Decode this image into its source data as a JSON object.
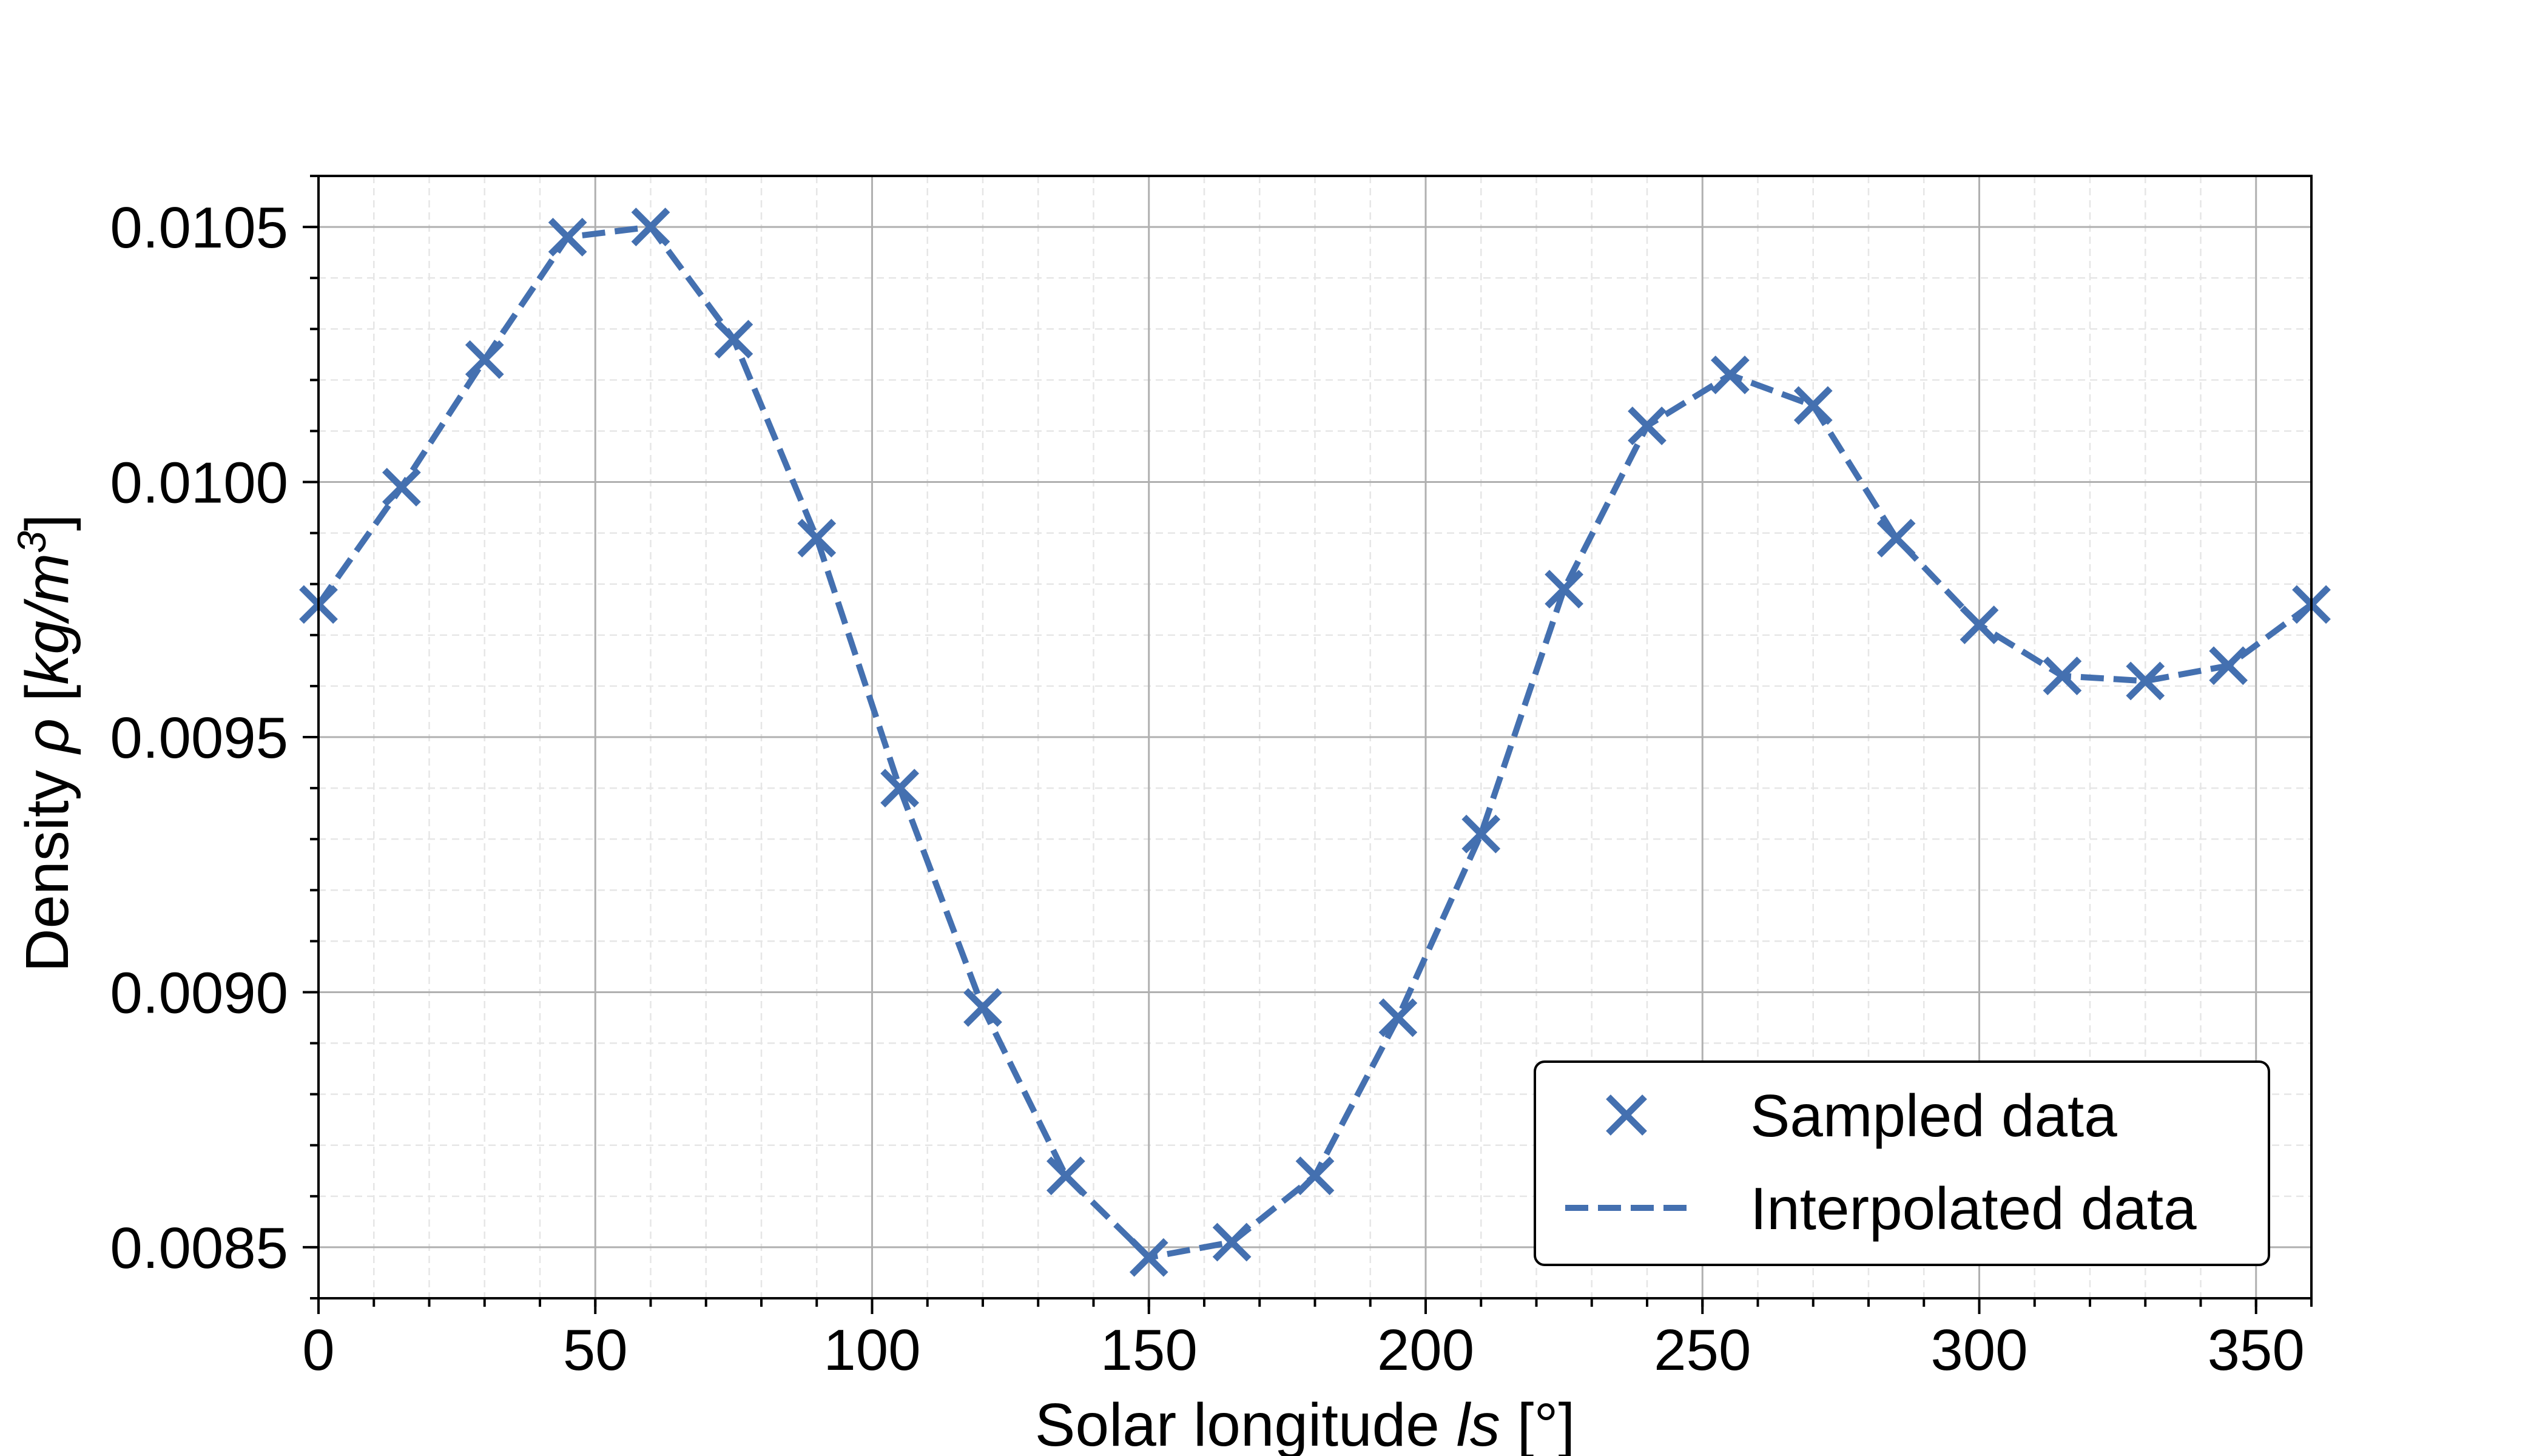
{
  "chart_data": {
    "type": "line",
    "title": "",
    "xlabel": "Solar longitude ls [°]",
    "xlabel_parts": {
      "before": "Solar longitude ",
      "italic": "ls",
      "after": " [°]"
    },
    "ylabel": "Density ρ [kg/m³]",
    "ylabel_parts": {
      "before": "Density ",
      "italic": "ρ",
      "bracket_open": " [",
      "unit_italic": "kg/m",
      "unit_sup": "3",
      "bracket_close": "]"
    },
    "xlim": [
      0,
      360
    ],
    "ylim": [
      0.0084,
      0.0106
    ],
    "x_ticks": [
      0,
      50,
      100,
      150,
      200,
      250,
      300,
      350
    ],
    "x_tick_labels": [
      "0",
      "50",
      "100",
      "150",
      "200",
      "250",
      "300",
      "350"
    ],
    "y_ticks": [
      0.0085,
      0.009,
      0.0095,
      0.01,
      0.0105
    ],
    "y_tick_labels": [
      "0.0085",
      "0.0090",
      "0.0095",
      "0.0100",
      "0.0105"
    ],
    "x_minor_step": 10,
    "y_minor_step": 0.0001,
    "grid": true,
    "legend_position": "lower-right",
    "series": [
      {
        "name": "Sampled data",
        "style": "markers",
        "marker": "x",
        "color": "#4470b0",
        "x": [
          0,
          15,
          30,
          45,
          60,
          75,
          90,
          105,
          120,
          135,
          150,
          165,
          180,
          195,
          210,
          225,
          240,
          255,
          270,
          285,
          300,
          315,
          330,
          345,
          360
        ],
        "y": [
          0.00976,
          0.00999,
          0.01024,
          0.01048,
          0.0105,
          0.01028,
          0.00989,
          0.0094,
          0.00897,
          0.00864,
          0.00848,
          0.00851,
          0.00864,
          0.00895,
          0.00931,
          0.00979,
          0.01011,
          0.01021,
          0.01015,
          0.00989,
          0.00972,
          0.00962,
          0.00961,
          0.00964,
          0.00976
        ]
      },
      {
        "name": "Interpolated data",
        "style": "dashed-line",
        "color": "#4470b0",
        "x": [
          0,
          15,
          30,
          45,
          60,
          75,
          90,
          105,
          120,
          135,
          150,
          165,
          180,
          195,
          210,
          225,
          240,
          255,
          270,
          285,
          300,
          315,
          330,
          345,
          360
        ],
        "y": [
          0.00976,
          0.00999,
          0.01024,
          0.01048,
          0.0105,
          0.01028,
          0.00989,
          0.0094,
          0.00897,
          0.00864,
          0.00848,
          0.00851,
          0.00864,
          0.00895,
          0.00931,
          0.00979,
          0.01011,
          0.01021,
          0.01015,
          0.00989,
          0.00972,
          0.00962,
          0.00961,
          0.00964,
          0.00976
        ]
      }
    ]
  }
}
